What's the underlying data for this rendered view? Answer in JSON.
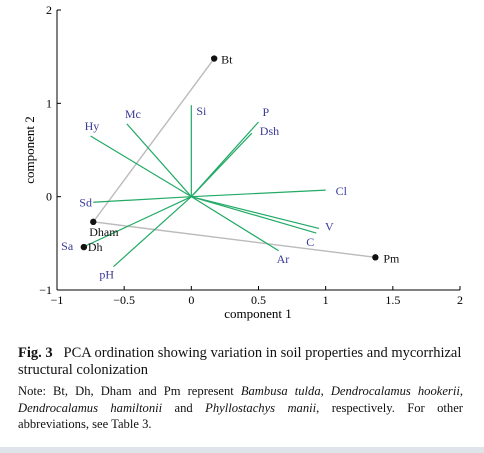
{
  "chart_data": {
    "type": "scatter",
    "xlabel": "component 1",
    "ylabel": "component 2",
    "xlim": [
      -1,
      2
    ],
    "ylim": [
      -1,
      2
    ],
    "x_ticks": [
      "−1",
      "−0.5",
      "0",
      "0.5",
      "1",
      "1.5",
      "2"
    ],
    "y_ticks": [
      "−1",
      "0",
      "1",
      "2"
    ],
    "colors": {
      "vectors": "#22aa66",
      "plant_lines": "#bbbbbb",
      "vector_labels": "#3a3a9a",
      "points": "#111111"
    },
    "vectors": [
      {
        "label": "Si",
        "x": 0.0,
        "y": 0.98
      },
      {
        "label": "Mc",
        "x": -0.48,
        "y": 0.78
      },
      {
        "label": "Hy",
        "x": -0.75,
        "y": 0.65
      },
      {
        "label": "P",
        "x": 0.5,
        "y": 0.8
      },
      {
        "label": "Dsh",
        "x": 0.45,
        "y": 0.68
      },
      {
        "label": "Cl",
        "x": 1.0,
        "y": 0.07
      },
      {
        "label": "V",
        "x": 0.95,
        "y": -0.34
      },
      {
        "label": "C",
        "x": 0.93,
        "y": -0.39
      },
      {
        "label": "Ar",
        "x": 0.65,
        "y": -0.58
      },
      {
        "label": "Sd",
        "x": -0.73,
        "y": -0.06
      },
      {
        "label": "Sa",
        "x": -0.82,
        "y": -0.55
      },
      {
        "label": "pH",
        "x": -0.58,
        "y": -0.75
      }
    ],
    "points": [
      {
        "label": "Bt",
        "x": 0.17,
        "y": 1.48
      },
      {
        "label": "Pm",
        "x": 1.37,
        "y": -0.65
      },
      {
        "label": "Dham",
        "x": -0.73,
        "y": -0.27
      },
      {
        "label": "Dh",
        "x": -0.8,
        "y": -0.54
      }
    ],
    "connections": [
      [
        "Dham",
        "Bt"
      ],
      [
        "Dham",
        "Pm"
      ]
    ]
  },
  "caption": {
    "label": "Fig. 3",
    "title": "PCA ordination showing variation in soil properties and mycorrhizal structural colonization",
    "note_prefix": "Note: Bt, Dh, Dham and Pm represent ",
    "species_1": "Bambusa tulda",
    "sep_1": ", ",
    "species_2": "Dendrocalamus hookerii",
    "sep_2": ", ",
    "species_3": "Dendrocalamus hamiltonii",
    "sep_3": " and ",
    "species_4": "Phyllostachys manii",
    "note_suffix": ", respectively. For other abbreviations, see Table 3."
  }
}
